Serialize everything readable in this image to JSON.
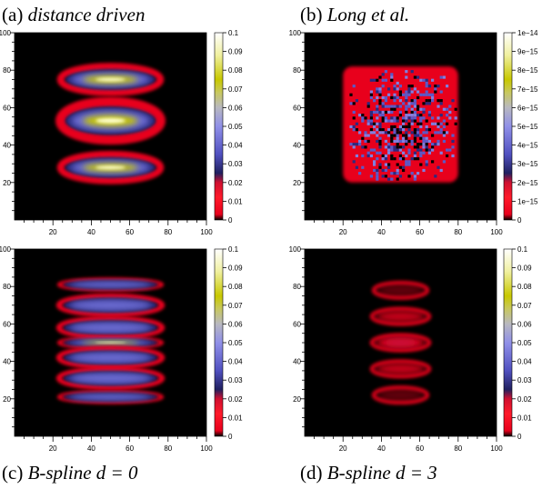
{
  "captions": {
    "a": {
      "prefix": "(a) ",
      "text": "distance driven"
    },
    "b": {
      "prefix": "(b) ",
      "text": "Long et al."
    },
    "c": {
      "prefix": "(c) ",
      "text": "B-spline",
      "math": "d = 0"
    },
    "d": {
      "prefix": "(d) ",
      "text": "B-spline",
      "math": "d = 3"
    }
  },
  "colormap": [
    "#000000",
    "#e8001c",
    "#ff2a3a",
    "#2a2a88",
    "#6a6ad8",
    "#9a9af0",
    "#b8b8a0",
    "#c8c800",
    "#ffffc8",
    "#ffffff"
  ],
  "chart_data": [
    {
      "type": "heatmap",
      "id": "a",
      "title": "distance driven",
      "xlim": [
        0,
        100
      ],
      "ylim": [
        0,
        100
      ],
      "xticks": [
        "20",
        "40",
        "60",
        "80",
        "100"
      ],
      "yticks": [
        "20",
        "40",
        "60",
        "80",
        "100"
      ],
      "colorbar": {
        "ticks": [
          "0",
          "0.01",
          "0.02",
          "0.03",
          "0.04",
          "0.05",
          "0.06",
          "0.07",
          "0.08",
          "0.09",
          "0.1"
        ],
        "min": 0,
        "max": 0.1
      },
      "blobs": [
        {
          "cx": 50,
          "cy": 75,
          "rx": 26,
          "ry": 7,
          "peak": 0.095
        },
        {
          "cx": 50,
          "cy": 53,
          "rx": 26,
          "ry": 10,
          "peak": 0.1
        },
        {
          "cx": 50,
          "cy": 28,
          "rx": 26,
          "ry": 7,
          "peak": 0.095
        }
      ]
    },
    {
      "type": "heatmap",
      "id": "b",
      "title": "Long et al.",
      "xlim": [
        0,
        100
      ],
      "ylim": [
        0,
        100
      ],
      "xticks": [
        "20",
        "40",
        "60",
        "80",
        "100"
      ],
      "yticks": [
        "20",
        "40",
        "60",
        "80",
        "100"
      ],
      "colorbar": {
        "ticks": [
          "0",
          "1e−15",
          "2e−15",
          "3e−15",
          "4e−15",
          "5e−15",
          "6e−15",
          "7e−15",
          "8e−15",
          "9e−15",
          "1e−14"
        ],
        "min": 0,
        "max": 1e-14
      },
      "region": {
        "x": [
          20,
          80
        ],
        "y": [
          20,
          82
        ],
        "level": 0.35
      }
    },
    {
      "type": "heatmap",
      "id": "c",
      "title": "B-spline d = 0",
      "xlim": [
        0,
        100
      ],
      "ylim": [
        0,
        100
      ],
      "xticks": [
        "20",
        "40",
        "60",
        "80",
        "100"
      ],
      "yticks": [
        "20",
        "40",
        "60",
        "80",
        "100"
      ],
      "colorbar": {
        "ticks": [
          "0",
          "0.01",
          "0.02",
          "0.03",
          "0.04",
          "0.05",
          "0.06",
          "0.07",
          "0.08",
          "0.09",
          "0.1"
        ],
        "min": 0,
        "max": 0.1
      },
      "blobs": [
        {
          "cx": 50,
          "cy": 81,
          "rx": 27,
          "ry": 3,
          "peak": 0.045
        },
        {
          "cx": 50,
          "cy": 70,
          "rx": 27,
          "ry": 5,
          "peak": 0.05
        },
        {
          "cx": 50,
          "cy": 58,
          "rx": 27,
          "ry": 5,
          "peak": 0.055
        },
        {
          "cx": 50,
          "cy": 50,
          "rx": 27,
          "ry": 3,
          "peak": 0.07
        },
        {
          "cx": 50,
          "cy": 42,
          "rx": 27,
          "ry": 5,
          "peak": 0.055
        },
        {
          "cx": 50,
          "cy": 31,
          "rx": 27,
          "ry": 5,
          "peak": 0.05
        },
        {
          "cx": 50,
          "cy": 21,
          "rx": 27,
          "ry": 3,
          "peak": 0.045
        }
      ]
    },
    {
      "type": "heatmap",
      "id": "d",
      "title": "B-spline d = 3",
      "xlim": [
        0,
        100
      ],
      "ylim": [
        0,
        100
      ],
      "xticks": [
        "20",
        "40",
        "60",
        "80",
        "100"
      ],
      "yticks": [
        "20",
        "40",
        "60",
        "80",
        "100"
      ],
      "colorbar": {
        "ticks": [
          "0",
          "0.01",
          "0.02",
          "0.03",
          "0.04",
          "0.05",
          "0.06",
          "0.07",
          "0.08",
          "0.09",
          "0.1"
        ],
        "min": 0,
        "max": 0.1
      },
      "blobs": [
        {
          "cx": 50,
          "cy": 78,
          "rx": 14,
          "ry": 4,
          "peak": 0.006
        },
        {
          "cx": 50,
          "cy": 64,
          "rx": 15,
          "ry": 4,
          "peak": 0.012
        },
        {
          "cx": 50,
          "cy": 50,
          "rx": 15,
          "ry": 4,
          "peak": 0.016
        },
        {
          "cx": 50,
          "cy": 36,
          "rx": 15,
          "ry": 4,
          "peak": 0.012
        },
        {
          "cx": 50,
          "cy": 22,
          "rx": 14,
          "ry": 4,
          "peak": 0.006
        }
      ]
    }
  ]
}
